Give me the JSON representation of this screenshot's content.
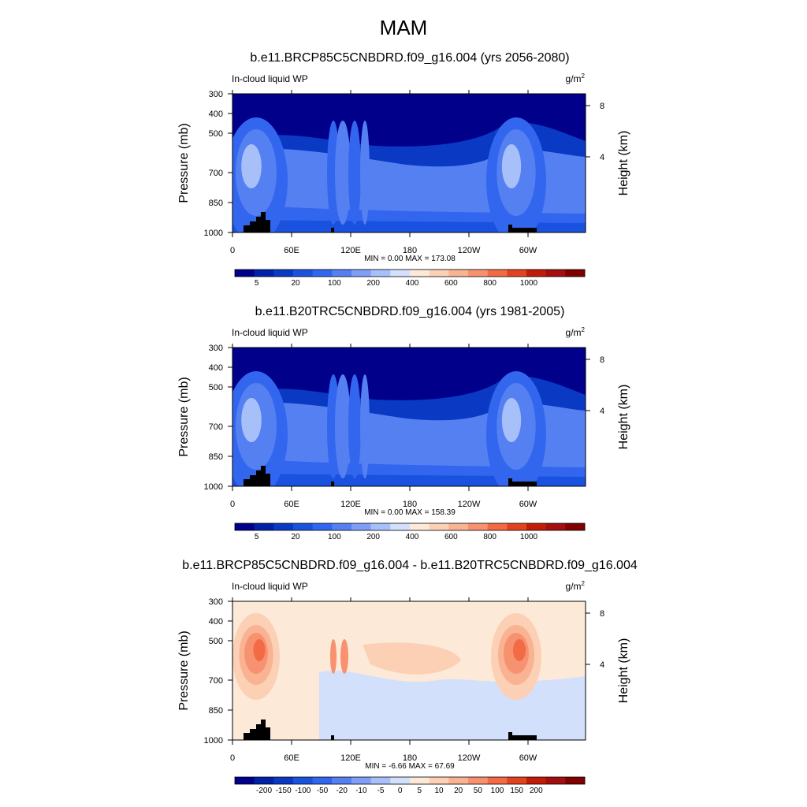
{
  "main_title": "MAM",
  "chart_data": [
    {
      "type": "heatmap",
      "title": "b.e11.BRCP85C5CNBDRD.f09_g16.004 (yrs 2056-2080)",
      "left_label": "In-cloud liquid WP",
      "units": "g/m",
      "units_sup": "2",
      "ylabel": "Pressure (mb)",
      "ylabel_right": "Height (km)",
      "y_ticks": [
        "300",
        "400",
        "500",
        "700",
        "850",
        "1000"
      ],
      "y_right_ticks": [
        "8",
        "4"
      ],
      "x_ticks": [
        "0",
        "60E",
        "120E",
        "180",
        "120W",
        "60W"
      ],
      "stats": "MIN =   0.00  MAX = 173.08",
      "colorbar_labels": [
        "5",
        "20",
        "100",
        "200",
        "400",
        "600",
        "800",
        "1000"
      ],
      "colors": [
        "#00008b",
        "#0022a8",
        "#0a3ac4",
        "#1a52e0",
        "#3366ee",
        "#5580f2",
        "#7f9ff6",
        "#a8c0fa",
        "#d2e0fc",
        "#fde9d8",
        "#fcd0b5",
        "#f9b393",
        "#f79271",
        "#f26b45",
        "#e2431f",
        "#c21c08",
        "#a30e0e",
        "#800000"
      ],
      "fill_levels": {
        "background": 0,
        "upper": 2,
        "mid": 4,
        "low": 5,
        "surface": 4,
        "bottom": 3
      }
    },
    {
      "type": "heatmap",
      "title": "b.e11.B20TRC5CNBDRD.f09_g16.004 (yrs 1981-2005)",
      "left_label": "In-cloud liquid WP",
      "units": "g/m",
      "units_sup": "2",
      "ylabel": "Pressure (mb)",
      "ylabel_right": "Height (km)",
      "y_ticks": [
        "300",
        "400",
        "500",
        "700",
        "850",
        "1000"
      ],
      "y_right_ticks": [
        "8",
        "4"
      ],
      "x_ticks": [
        "0",
        "60E",
        "120E",
        "180",
        "120W",
        "60W"
      ],
      "stats": "MIN =   0.00  MAX = 158.39",
      "colorbar_labels": [
        "5",
        "20",
        "100",
        "200",
        "400",
        "600",
        "800",
        "1000"
      ],
      "colors": [
        "#00008b",
        "#0022a8",
        "#0a3ac4",
        "#1a52e0",
        "#3366ee",
        "#5580f2",
        "#7f9ff6",
        "#a8c0fa",
        "#d2e0fc",
        "#fde9d8",
        "#fcd0b5",
        "#f9b393",
        "#f79271",
        "#f26b45",
        "#e2431f",
        "#c21c08",
        "#a30e0e",
        "#800000"
      ],
      "fill_levels": {
        "background": 0,
        "upper": 2,
        "mid": 4,
        "low": 5,
        "surface": 4,
        "bottom": 3
      }
    },
    {
      "type": "heatmap",
      "title": "b.e11.BRCP85C5CNBDRD.f09_g16.004 - b.e11.B20TRC5CNBDRD.f09_g16.004",
      "left_label": "In-cloud liquid WP",
      "units": "g/m",
      "units_sup": "2",
      "ylabel": "Pressure (mb)",
      "ylabel_right": "Height (km)",
      "y_ticks": [
        "300",
        "400",
        "500",
        "700",
        "850",
        "1000"
      ],
      "y_right_ticks": [
        "8",
        "4"
      ],
      "x_ticks": [
        "0",
        "60E",
        "120E",
        "180",
        "120W",
        "60W"
      ],
      "stats": "MIN =  -6.66  MAX =  67.69",
      "colorbar_labels": [
        "-200",
        "-150",
        "-100",
        "-50",
        "-20",
        "-10",
        "-5",
        "0",
        "5",
        "10",
        "20",
        "50",
        "100",
        "150",
        "200"
      ],
      "colors": [
        "#00008b",
        "#0022a8",
        "#0a3ac4",
        "#1a52e0",
        "#3366ee",
        "#5580f2",
        "#7f9ff6",
        "#a8c0fa",
        "#d2e0fc",
        "#fde9d8",
        "#fcd0b5",
        "#f9b393",
        "#f79271",
        "#f26b45",
        "#e2431f",
        "#c21c08",
        "#a30e0e",
        "#800000"
      ],
      "fill_levels": {
        "background": 9,
        "upper": 9,
        "mid": 10,
        "low": 8,
        "surface": 8,
        "bottom": 9
      }
    }
  ]
}
